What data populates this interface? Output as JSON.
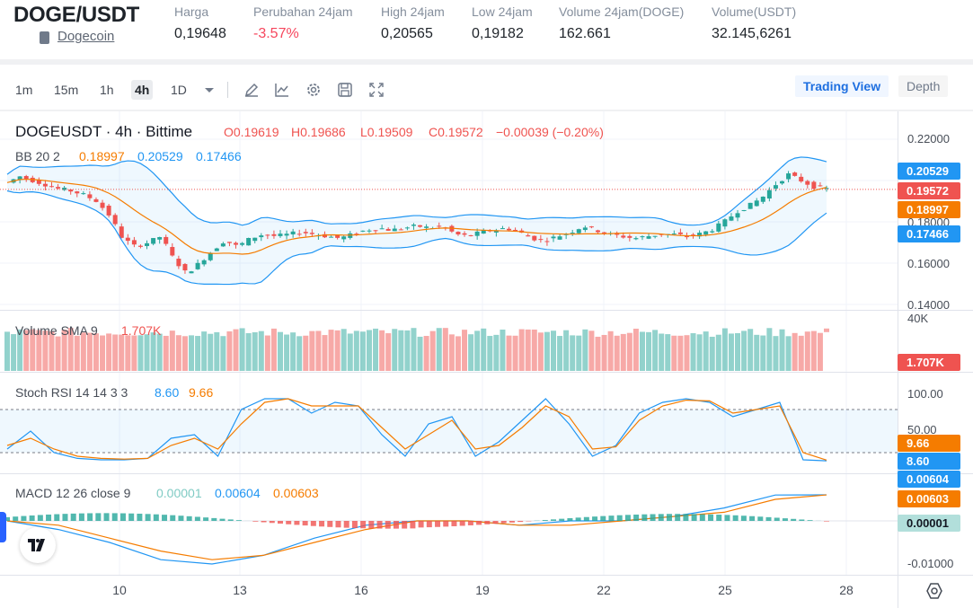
{
  "header": {
    "pair": "DOGE/USDT",
    "coin_link": "Dogecoin",
    "stats": [
      {
        "label": "Harga",
        "value": "0,19648",
        "negative": false
      },
      {
        "label": "Perubahan 24jam",
        "value": "-3.57%",
        "negative": true
      },
      {
        "label": "High 24jam",
        "value": "0,20565",
        "negative": false
      },
      {
        "label": "Low 24jam",
        "value": "0,19182",
        "negative": false
      },
      {
        "label": "Volume 24jam(DOGE)",
        "value": "162.661",
        "negative": false
      },
      {
        "label": "Volume(USDT)",
        "value": "32.145,6261",
        "negative": false
      }
    ]
  },
  "toolbar": {
    "timeframes": [
      "1m",
      "15m",
      "1h",
      "4h",
      "1D"
    ],
    "active_timeframe": "4h",
    "icons": [
      "chevron-down-icon",
      "pencil-icon",
      "line-chart-icon",
      "gear-icon",
      "save-icon",
      "fullscreen-icon"
    ],
    "trading_view_label": "Trading View",
    "depth_label": "Depth"
  },
  "legend": {
    "symbol": "DOGEUSDT · 4h · Bittime",
    "o": "O0.19619",
    "h": "H0.19686",
    "l": "L0.19509",
    "c": "C0.19572",
    "change": "−0.00039 (−0.20%)",
    "bb_label": "BB 20 2",
    "bb_mid": "0.18997",
    "bb_upper": "0.20529",
    "bb_lower": "0.17466",
    "vol_label": "Volume SMA 9",
    "vol_value": "1.707K",
    "stoch_label": "Stoch RSI 14 14 3 3",
    "stoch_k": "8.60",
    "stoch_d": "9.66",
    "macd_label": "MACD 12 26 close 9",
    "macd_hist": "0.00001",
    "macd_line": "0.00604",
    "macd_signal": "0.00603"
  },
  "axes": {
    "price_ticks": [
      "0.22000",
      "0.20000",
      "0.18000",
      "0.16000",
      "0.14000"
    ],
    "volume_tick": "40K",
    "stoch_ticks": [
      "100.00",
      "50.00"
    ],
    "macd_ticks": [
      "-0.01000"
    ],
    "x_ticks": [
      "10",
      "13",
      "16",
      "19",
      "22",
      "25",
      "28"
    ]
  },
  "price_tags": {
    "bb_upper": "0.20529",
    "last_price": "0.19572",
    "bb_mid": "0.18997",
    "bb_lower": "0.17466",
    "volume": "1.707K",
    "stoch_d": "9.66",
    "stoch_k": "8.60",
    "macd_line": "0.00604",
    "macd_signal": "0.00603",
    "macd_hist": "0.00001"
  },
  "colors": {
    "up": "#26a69a",
    "down": "#ef5350",
    "bb_band": "#2196f3",
    "bb_mid": "#f57c00",
    "accent": "#1e6fe0"
  },
  "chart_data": {
    "type": "candlestick",
    "x_ticks": [
      "10",
      "13",
      "16",
      "19",
      "22",
      "25",
      "28"
    ],
    "price_ylim": [
      0.14,
      0.22
    ],
    "close_path": [
      0.199,
      0.202,
      0.2,
      0.198,
      0.196,
      0.195,
      0.193,
      0.19,
      0.183,
      0.172,
      0.168,
      0.17,
      0.173,
      0.162,
      0.155,
      0.16,
      0.166,
      0.171,
      0.168,
      0.172,
      0.174,
      0.173,
      0.174,
      0.175,
      0.174,
      0.173,
      0.172,
      0.174,
      0.176,
      0.177,
      0.176,
      0.177,
      0.178,
      0.177,
      0.178,
      0.174,
      0.173,
      0.175,
      0.176,
      0.177,
      0.175,
      0.172,
      0.171,
      0.173,
      0.175,
      0.178,
      0.176,
      0.174,
      0.173,
      0.172,
      0.173,
      0.174,
      0.174,
      0.173,
      0.174,
      0.176,
      0.18,
      0.185,
      0.188,
      0.192,
      0.198,
      0.203,
      0.2,
      0.197,
      0.196
    ],
    "stoch_k_path": [
      25,
      50,
      20,
      12,
      10,
      10,
      12,
      40,
      45,
      15,
      80,
      95,
      95,
      75,
      90,
      85,
      45,
      15,
      60,
      70,
      15,
      35,
      65,
      95,
      60,
      15,
      30,
      75,
      90,
      95,
      90,
      70,
      80,
      90,
      10,
      8.6
    ],
    "stoch_d_path": [
      30,
      40,
      25,
      15,
      12,
      11,
      12,
      30,
      40,
      25,
      60,
      90,
      95,
      85,
      85,
      85,
      55,
      25,
      45,
      65,
      25,
      30,
      55,
      85,
      70,
      25,
      28,
      65,
      85,
      93,
      92,
      75,
      80,
      85,
      20,
      9.66
    ],
    "macd_line_path": [
      0.0,
      -0.002,
      -0.005,
      -0.009,
      -0.01,
      -0.008,
      -0.004,
      -0.001,
      0.0,
      0.0,
      -0.001,
      0.0,
      0.0,
      0.001,
      0.003,
      0.006,
      0.00604
    ],
    "macd_signal_path": [
      0.0,
      -0.001,
      -0.004,
      -0.007,
      -0.009,
      -0.008,
      -0.005,
      -0.002,
      0.0,
      0.0,
      -0.001,
      -0.001,
      0.0,
      0.001,
      0.002,
      0.005,
      0.00603
    ]
  }
}
